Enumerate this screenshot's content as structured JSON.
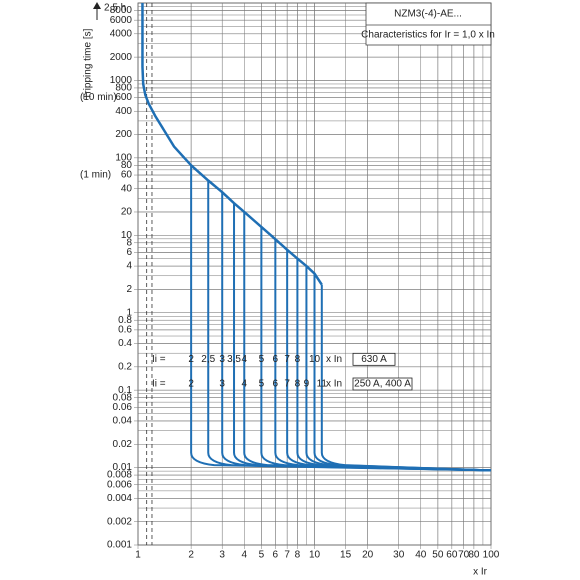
{
  "chart_data": {
    "type": "line",
    "title": "NZM3(-4)-AE...",
    "subtitle": "Characteristics for Ir = 1,0 x In",
    "y_label": "Tripping time [s]",
    "x_label": "x Ir",
    "log_x": true,
    "log_y": true,
    "grid": true,
    "color": "#1f6fb4",
    "xlim": [
      1,
      100
    ],
    "ylim": [
      0.001,
      10000
    ],
    "xticks": [
      1,
      2,
      3,
      4,
      5,
      6,
      7,
      8,
      10,
      15,
      20,
      30,
      40,
      50,
      60,
      70,
      80,
      100
    ],
    "yticks": [
      0.001,
      0.002,
      0.004,
      0.006,
      0.008,
      0.01,
      0.02,
      0.04,
      0.06,
      0.08,
      0.1,
      0.2,
      0.4,
      0.6,
      0.8,
      1,
      2,
      4,
      6,
      8,
      10,
      20,
      40,
      60,
      80,
      100,
      200,
      400,
      600,
      800,
      1000,
      2000,
      4000,
      6000,
      8000
    ],
    "time_marks": [
      {
        "value": 9000,
        "label": "2,5 h"
      },
      {
        "value": 600,
        "label": "(10 min)"
      },
      {
        "value": 60,
        "label": "(1 min)"
      }
    ],
    "tolerance_lines": [
      1.12,
      1.2
    ],
    "overload": {
      "x": [
        1.06,
        1.06,
        1.07,
        1.1,
        1.15,
        1.25,
        1.4,
        1.6,
        2,
        2.5,
        3,
        3.5,
        4,
        5,
        6,
        7,
        8,
        9,
        10,
        11
      ],
      "y": [
        10000,
        1500,
        900,
        650,
        500,
        350,
        230,
        140,
        80,
        51,
        36,
        26,
        20,
        12.8,
        8.9,
        6.5,
        5,
        4,
        3.2,
        2.3
      ]
    },
    "instantaneous": {
      "x": [
        2,
        2.5,
        3,
        3.5,
        4,
        5,
        6,
        7,
        8,
        9,
        10,
        11
      ],
      "y_top": [
        80,
        51,
        36,
        26,
        20,
        12.8,
        8.9,
        6.5,
        5,
        4,
        3.2,
        2.3
      ],
      "y_bottom": 0.013,
      "tail_x": 100,
      "tail_y": 0.0092
    },
    "settings_rows": [
      {
        "label": "Ii =",
        "unit": "x In",
        "rating": "630 A",
        "y": 0.25,
        "values": [
          2,
          {
            "value": 2.5,
            "label": "2,5"
          },
          3,
          {
            "value": 3.5,
            "label": "3,5"
          },
          4,
          5,
          6,
          7,
          8,
          10
        ]
      },
      {
        "label": "Ii =",
        "unit": "x In",
        "rating": "250 A, 400 A",
        "y": 0.12,
        "values": [
          2,
          3,
          4,
          5,
          6,
          7,
          8,
          9,
          11
        ]
      }
    ]
  }
}
